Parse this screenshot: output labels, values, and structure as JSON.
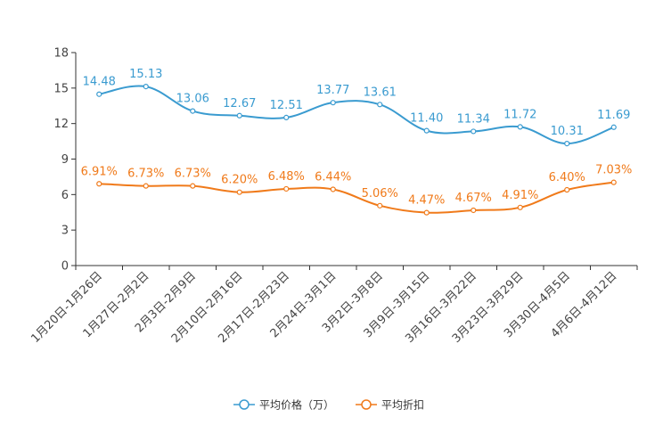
{
  "chart_data": {
    "type": "line",
    "title": "",
    "xlabel": "",
    "ylabel": "",
    "ylim": [
      0,
      18
    ],
    "yticks": [
      0,
      3,
      6,
      9,
      12,
      15,
      18
    ],
    "grid": false,
    "legend_position": "bottom-center",
    "categories": [
      "1月20日-1月26日",
      "1月27日-2月2日",
      "2月3日-2月9日",
      "2月10日-2月16日",
      "2月17日-2月23日",
      "2月24日-3月1日",
      "3月2日-3月8日",
      "3月9日-3月15日",
      "3月16日-3月22日",
      "3月23日-3月29日",
      "3月30日-4月5日",
      "4月6日-4月12日"
    ],
    "series": [
      {
        "name": "平均价格（万）",
        "color": "#3a9bd0",
        "values": [
          14.48,
          15.13,
          13.06,
          12.67,
          12.51,
          13.77,
          13.61,
          11.4,
          11.34,
          11.72,
          10.31,
          11.69
        ],
        "labels": [
          "14.48",
          "15.13",
          "13.06",
          "12.67",
          "12.51",
          "13.77",
          "13.61",
          "11.40",
          "11.34",
          "11.72",
          "10.31",
          "11.69"
        ]
      },
      {
        "name": "平均折扣",
        "color": "#f07a1a",
        "values": [
          6.91,
          6.73,
          6.73,
          6.2,
          6.48,
          6.44,
          5.06,
          4.47,
          4.67,
          4.91,
          6.4,
          7.03
        ],
        "labels": [
          "6.91%",
          "6.73%",
          "6.73%",
          "6.20%",
          "6.48%",
          "6.44%",
          "5.06%",
          "4.47%",
          "4.67%",
          "4.91%",
          "6.40%",
          "7.03%"
        ]
      }
    ]
  }
}
